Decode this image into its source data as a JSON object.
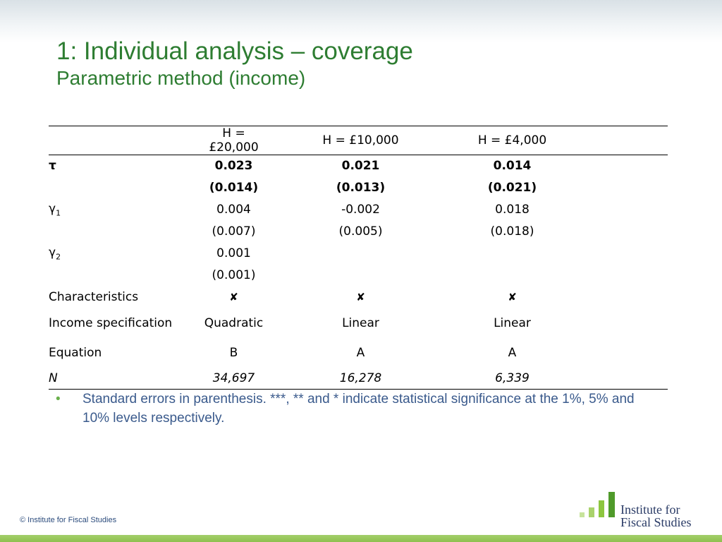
{
  "slide": {
    "title": "1: Individual analysis – coverage",
    "subtitle": "Parametric method (income)"
  },
  "table": {
    "headers": [
      "",
      "H = £20,000",
      "H = £10,000",
      "H = £4,000"
    ],
    "rows": [
      {
        "label": "τ",
        "values": [
          "0.023",
          "0.021",
          "0.014"
        ]
      },
      {
        "label": "",
        "values": [
          "(0.014)",
          "(0.013)",
          "(0.021)"
        ]
      },
      {
        "label": "γ",
        "sub": "1",
        "values": [
          "0.004",
          "-0.002",
          "0.018"
        ]
      },
      {
        "label": "",
        "values": [
          "(0.007)",
          "(0.005)",
          "(0.018)"
        ]
      },
      {
        "label": "γ",
        "sub": "2",
        "values": [
          "0.001",
          "",
          ""
        ]
      },
      {
        "label": "",
        "values": [
          "(0.001)",
          "",
          ""
        ]
      },
      {
        "label": "Characteristics",
        "values": [
          "✘",
          "✘",
          "✘"
        ]
      },
      {
        "label": "Income specification",
        "values": [
          "Quadratic",
          "Linear",
          "Linear"
        ]
      },
      {
        "label": "Equation",
        "values": [
          "B",
          "A",
          "A"
        ]
      },
      {
        "label": "N",
        "values": [
          "34,697",
          "16,278",
          "6,339"
        ]
      }
    ]
  },
  "note": {
    "bullet": "•",
    "text": "Standard errors in parenthesis. ***, ** and * indicate statistical significance at the 1%, 5% and 10% levels respectively."
  },
  "footer": {
    "copyright": "© Institute for Fiscal Studies",
    "logo_line1": "Institute for",
    "logo_line2": "Fiscal Studies"
  },
  "colors": {
    "title": "#2e7d32",
    "note_text": "#3a5a8c",
    "logo_bars": "#8dc63f",
    "bottom_bar": "#8ec04f"
  }
}
